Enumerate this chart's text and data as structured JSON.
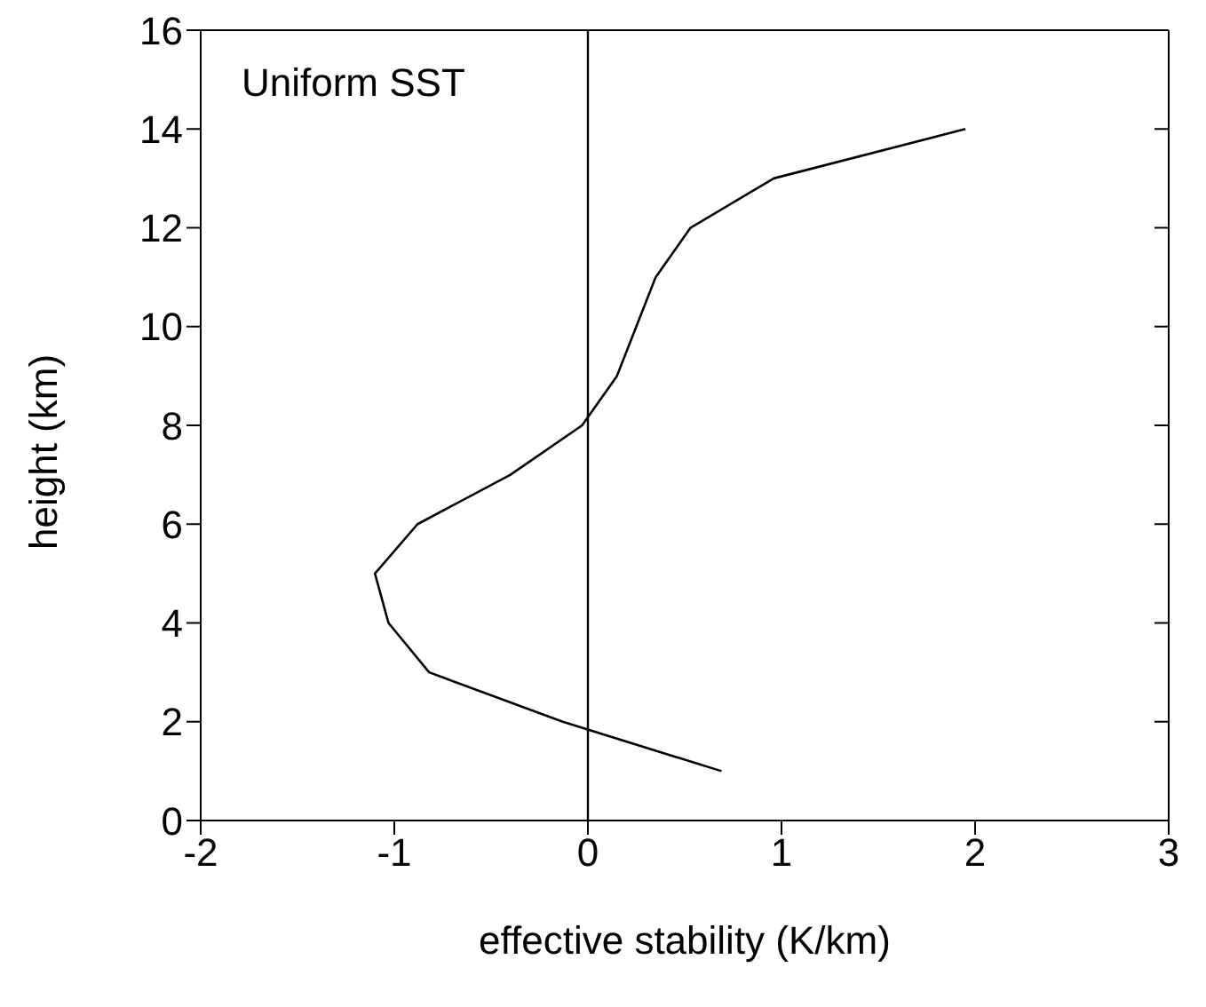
{
  "chart_data": {
    "type": "line",
    "xlabel": "effective stability (K/km)",
    "ylabel": "height (km)",
    "annotations": [
      "Uniform SST"
    ],
    "x": [
      0.69,
      -0.13,
      -0.82,
      -1.03,
      -1.1,
      -0.88,
      -0.4,
      -0.03,
      0.15,
      0.25,
      0.35,
      0.53,
      0.96,
      1.95
    ],
    "series": [
      {
        "color": "#000000",
        "values": [
          1,
          2,
          3,
          4,
          5,
          6,
          7,
          8,
          9,
          10,
          11,
          12,
          13,
          14
        ]
      }
    ],
    "xlim": [
      -2,
      3
    ],
    "xticks": [
      -2,
      -1,
      0,
      1,
      2,
      3
    ],
    "ylim": [
      0,
      16
    ],
    "yticks": [
      0,
      2,
      4,
      6,
      8,
      10,
      12,
      14,
      16
    ],
    "ref_lines": [
      {
        "axis": "x",
        "value": 0,
        "color": "#000000"
      }
    ],
    "grid": false,
    "legend": false,
    "marker": "none",
    "line_style": "solid"
  }
}
